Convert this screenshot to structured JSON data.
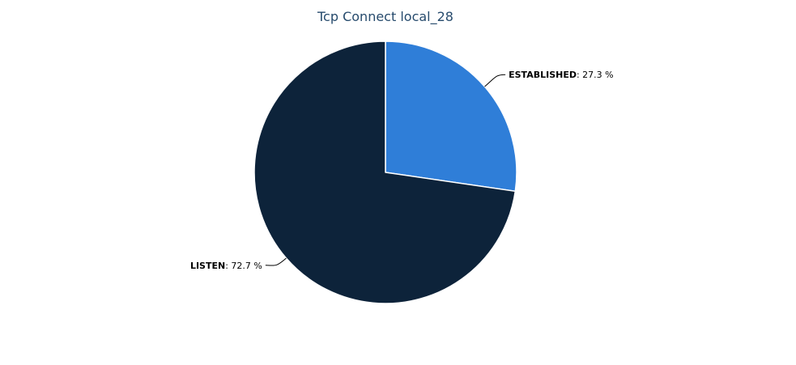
{
  "chart_data": {
    "type": "pie",
    "title": "Tcp Connect local_28",
    "slices": [
      {
        "name": "ESTABLISHED",
        "value": 27.3,
        "label_value": "27.3 %",
        "color": "#2f7ed8"
      },
      {
        "name": "LISTEN",
        "value": 72.7,
        "label_value": "72.7 %",
        "color": "#0d233a"
      }
    ],
    "start_angle_deg": 0,
    "legend": "none"
  }
}
